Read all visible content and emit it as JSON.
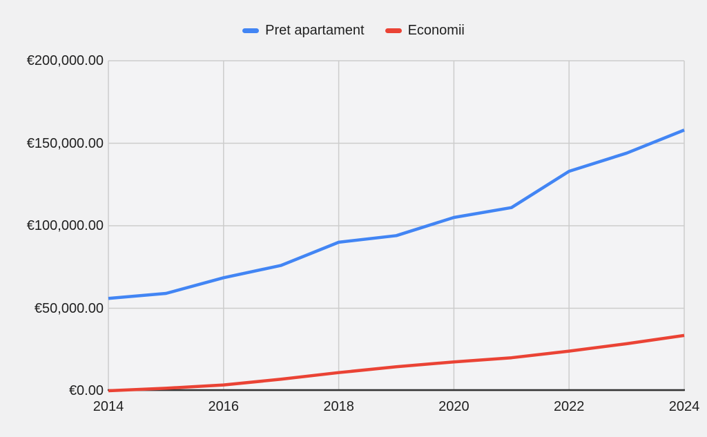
{
  "colors": {
    "background": "#f1f1f2",
    "plot_background": "#f3f3f5",
    "gridline": "#cccccc",
    "axis_line": "#333333",
    "text": "#1f1f1f",
    "series_blue": "#4285f4",
    "series_red": "#ea4335"
  },
  "legend": {
    "position": "top",
    "items": [
      {
        "label": "Pret apartament",
        "color": "#4285f4"
      },
      {
        "label": "Economii",
        "color": "#ea4335"
      }
    ]
  },
  "chart_data": {
    "type": "line",
    "title": "",
    "xlabel": "",
    "ylabel": "",
    "grid": true,
    "legend_position": "top",
    "xlim": [
      2014,
      2024
    ],
    "ylim": [
      0,
      200000
    ],
    "x": [
      2014,
      2015,
      2016,
      2017,
      2018,
      2019,
      2020,
      2021,
      2022,
      2023,
      2024
    ],
    "x_ticks": [
      {
        "value": 2014,
        "label": "2014"
      },
      {
        "value": 2016,
        "label": "2016"
      },
      {
        "value": 2018,
        "label": "2018"
      },
      {
        "value": 2020,
        "label": "2020"
      },
      {
        "value": 2022,
        "label": "2022"
      },
      {
        "value": 2024,
        "label": "2024"
      }
    ],
    "y_ticks": [
      {
        "value": 0,
        "label": "€0.00"
      },
      {
        "value": 50000,
        "label": "€50,000.00"
      },
      {
        "value": 100000,
        "label": "€100,000.00"
      },
      {
        "value": 150000,
        "label": "€150,000.00"
      },
      {
        "value": 200000,
        "label": "€200,000.00"
      }
    ],
    "series": [
      {
        "name": "Pret apartament",
        "color": "#4285f4",
        "values": [
          56000,
          59000,
          68500,
          76000,
          90000,
          94000,
          105000,
          111000,
          133000,
          144000,
          158000
        ]
      },
      {
        "name": "Economii",
        "color": "#ea4335",
        "values": [
          0,
          1500,
          3500,
          7000,
          11000,
          14500,
          17500,
          20000,
          24000,
          28500,
          33500
        ]
      }
    ]
  }
}
